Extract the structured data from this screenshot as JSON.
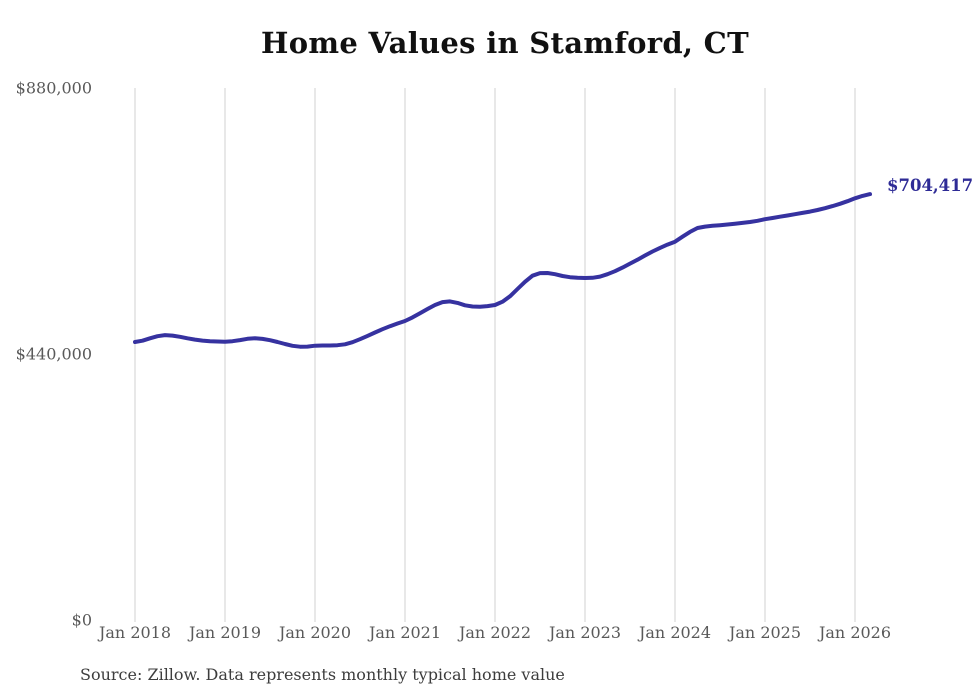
{
  "title": "Home Values in Stamford, CT",
  "source_note": "Source: Zillow. Data represents monthly typical home value",
  "colors": {
    "line": "#3632a0",
    "end_label": "#2e2b96",
    "gridline": "#d2d2d2",
    "axis_text": "#595959",
    "source_text": "#3d3d3d",
    "title_text": "#111111",
    "background": "#ffffff"
  },
  "chart_data": {
    "type": "line",
    "title": "Home Values in Stamford, CT",
    "xlabel": "",
    "ylabel": "",
    "ylim": [
      0,
      880000
    ],
    "grid": "vertical-only",
    "legend": "none",
    "x_tick_labels": [
      "Jan 2018",
      "Jan 2019",
      "Jan 2020",
      "Jan 2021",
      "Jan 2022",
      "Jan 2023",
      "Jan 2024",
      "Jan 2025",
      "Jan 2026"
    ],
    "y_ticks": [
      {
        "label": "$0",
        "value": 0
      },
      {
        "label": "$440,000",
        "value": 440000
      },
      {
        "label": "$880,000",
        "value": 880000
      }
    ],
    "end_label": "$704,417",
    "end_value": 704417,
    "series": [
      {
        "name": "Monthly typical home value",
        "start_month": "2018-01",
        "end_month": "2026-03",
        "values": [
          459900,
          462000,
          466000,
          469500,
          471200,
          470500,
          468500,
          466000,
          463800,
          462200,
          461200,
          460600,
          460300,
          461200,
          463000,
          465200,
          466000,
          465000,
          462800,
          459800,
          456500,
          453500,
          452000,
          452300,
          453800,
          454000,
          454000,
          454500,
          456000,
          459500,
          464500,
          470000,
          475500,
          481000,
          486000,
          490500,
          494600,
          500500,
          507500,
          514500,
          521000,
          525800,
          527000,
          524500,
          520500,
          518500,
          518000,
          519200,
          521000,
          526500,
          535500,
          547500,
          559500,
          569500,
          573800,
          574000,
          572000,
          569000,
          567000,
          566000,
          565700,
          566000,
          568000,
          572000,
          577000,
          583000,
          589500,
          596000,
          603000,
          609500,
          615500,
          621000,
          625800,
          634000,
          642000,
          648500,
          650800,
          652000,
          653000,
          654200,
          655500,
          656800,
          658300,
          660300,
          662900,
          665000,
          667100,
          669100,
          671200,
          673400,
          675600,
          678200,
          681200,
          684600,
          688400,
          692700,
          697600,
          701500,
          704417
        ]
      }
    ]
  }
}
